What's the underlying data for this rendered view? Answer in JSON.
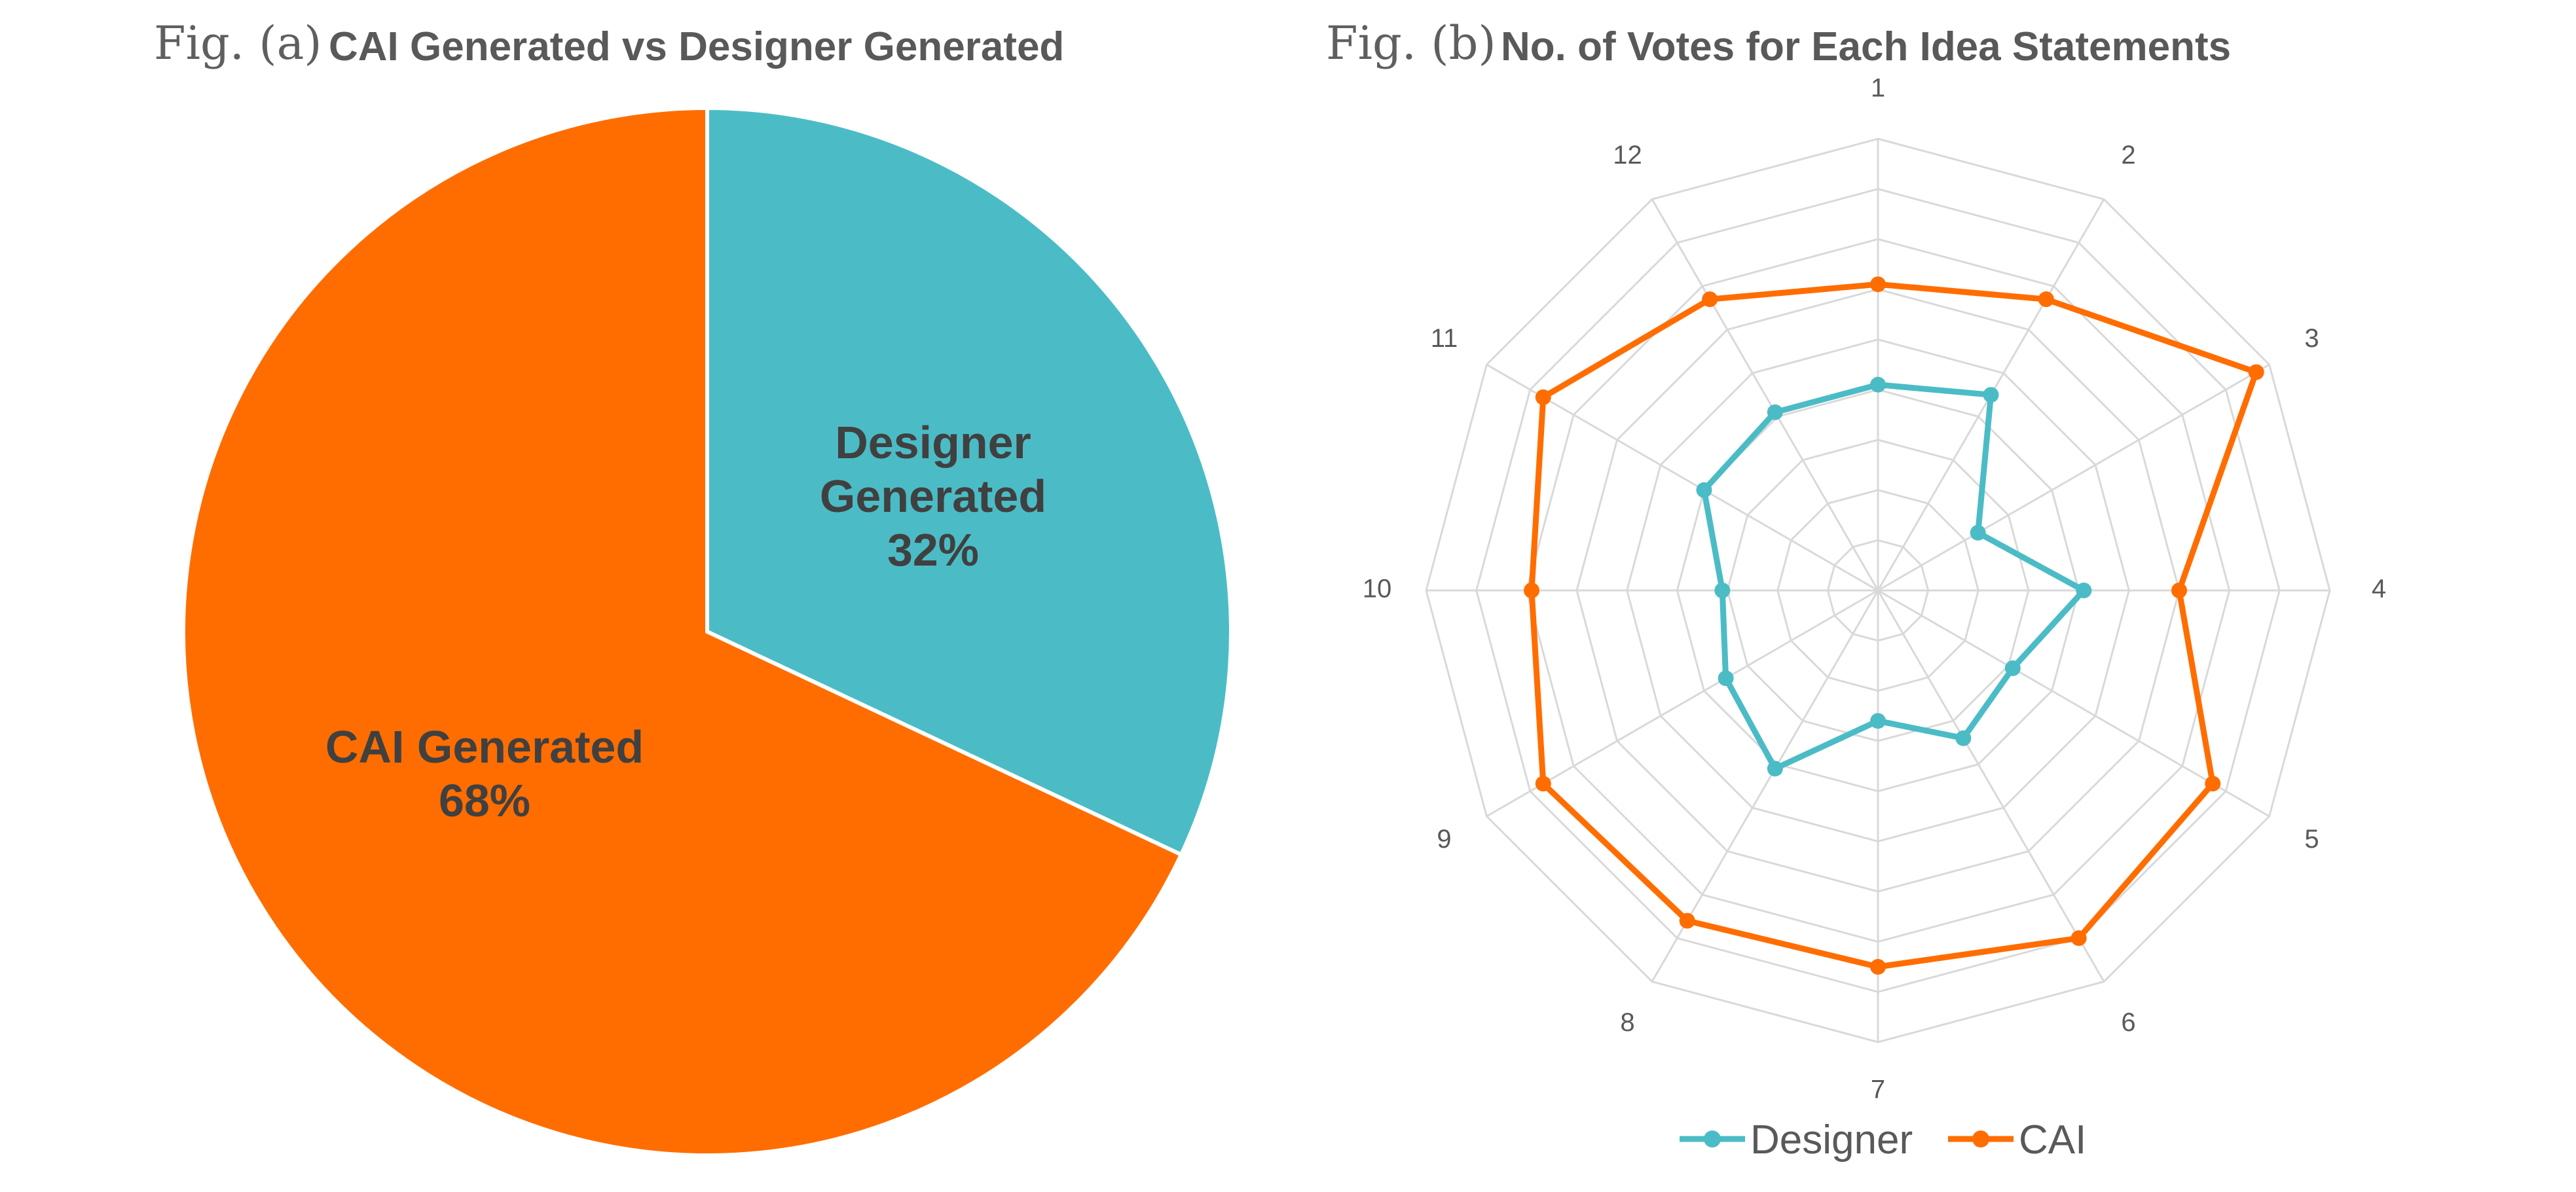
{
  "colors": {
    "designer": "#4bbcc6",
    "cai": "#ff6d00",
    "grid": "#d9d9d9"
  },
  "chart_data": [
    {
      "type": "pie",
      "prefix": "Fig. (a)",
      "title": "CAI Generated vs Designer Generated",
      "slices": [
        {
          "label_lines": [
            "Designer",
            "Generated",
            "32%"
          ],
          "value": 32,
          "color": "#4bbcc6"
        },
        {
          "label_lines": [
            "CAI Generated",
            "68%"
          ],
          "value": 68,
          "color": "#ff6d00"
        }
      ]
    },
    {
      "type": "radar",
      "prefix": "Fig. (b)",
      "title": "No. of Votes for Each Idea Statements",
      "categories": [
        "1",
        "2",
        "3",
        "4",
        "5",
        "6",
        "7",
        "8",
        "9",
        "10",
        "11",
        "12"
      ],
      "rmax": 9,
      "gridlines": 9,
      "series": [
        {
          "name": "Designer",
          "color": "#4bbcc6",
          "values": [
            4.1,
            4.5,
            2.3,
            4.1,
            3.1,
            3.4,
            2.6,
            4.1,
            3.5,
            3.1,
            4.0,
            4.1
          ]
        },
        {
          "name": "CAI",
          "color": "#ff6d00",
          "values": [
            6.1,
            6.7,
            8.7,
            6.0,
            7.7,
            8.0,
            7.5,
            7.6,
            7.7,
            6.9,
            7.7,
            6.7
          ]
        }
      ],
      "legend": [
        "Designer",
        "CAI"
      ]
    }
  ]
}
